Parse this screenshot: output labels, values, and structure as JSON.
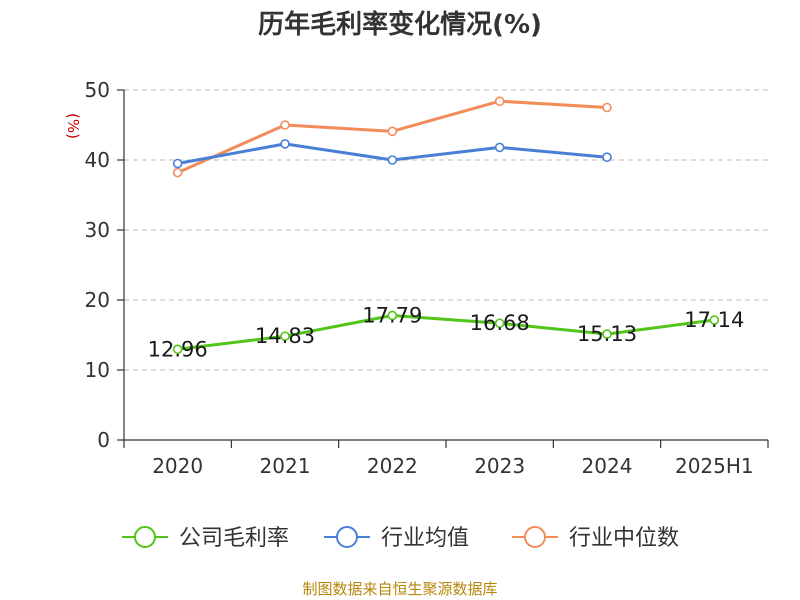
{
  "chart_data": {
    "type": "line",
    "title": "历年毛利率变化情况(%)",
    "unit_label": "(%)",
    "categories": [
      "2020",
      "2021",
      "2022",
      "2023",
      "2024",
      "2025H1"
    ],
    "ylim": [
      0,
      50
    ],
    "yticks": [
      0,
      10,
      20,
      30,
      40,
      50
    ],
    "grid": true,
    "legend_position": "bottom",
    "series": [
      {
        "name": "公司毛利率",
        "color": "#52c41a",
        "values": [
          12.96,
          14.83,
          17.79,
          16.68,
          15.13,
          17.14
        ],
        "labels": [
          "12.96",
          "14.83",
          "17.79",
          "16.68",
          "15.13",
          "17.14"
        ]
      },
      {
        "name": "行业均值",
        "color": "#4a7fd6",
        "values": [
          39.5,
          42.3,
          40.0,
          41.8,
          40.4,
          null
        ]
      },
      {
        "name": "行业中位数",
        "color": "#f28c5a",
        "values": [
          38.2,
          45.0,
          44.1,
          48.4,
          47.5,
          null
        ]
      }
    ],
    "source": "制图数据来自恒生聚源数据库"
  }
}
